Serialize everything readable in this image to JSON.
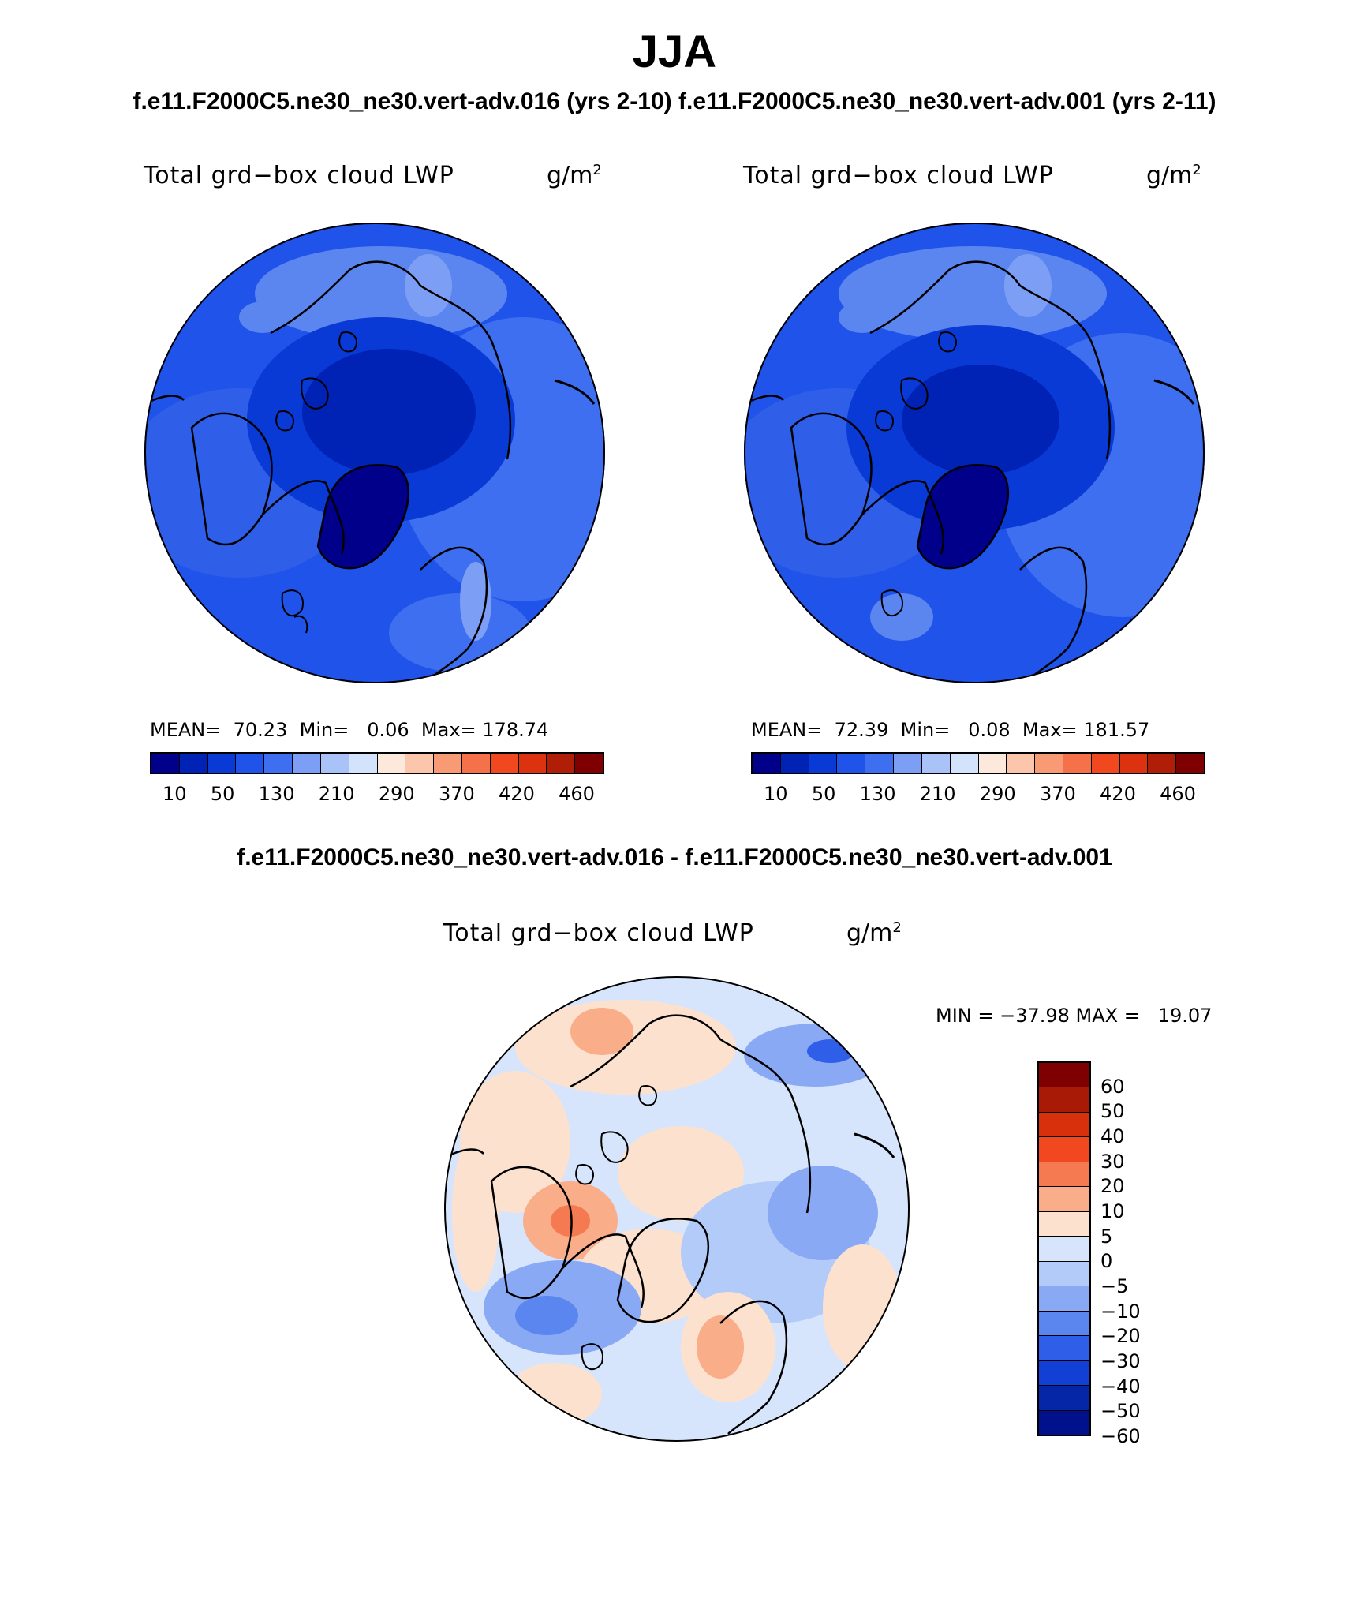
{
  "title": "JJA",
  "subtitle_top": "f.e11.F2000C5.ne30_ne30.vert-adv.016 (yrs 2-10)  f.e11.F2000C5.ne30_ne30.vert-adv.001 (yrs 2-11)",
  "subtitle_diff": "f.e11.F2000C5.ne30_ne30.vert-adv.016 - f.e11.F2000C5.ne30_ne30.vert-adv.001",
  "variable_label": "Total grd−box cloud LWP",
  "units_base": "g/m",
  "units_exp": "2",
  "panels": [
    {
      "mean_label": "MEAN=",
      "mean": "70.23",
      "min_label": "Min=",
      "min": "0.06",
      "max_label": "Max=",
      "max": "178.74"
    },
    {
      "mean_label": "MEAN=",
      "mean": "72.39",
      "min_label": "Min=",
      "min": "0.08",
      "max_label": "Max=",
      "max": "181.57"
    }
  ],
  "diff_panel": {
    "minmax": "MIN = −37.98 MAX =   19.07"
  },
  "colorbar_abs": {
    "colors": [
      "#00008b",
      "#0022b5",
      "#0a3ad6",
      "#1f53ea",
      "#3d6ff0",
      "#7c9ff5",
      "#a9c2f8",
      "#d3e3fb",
      "#fde9dc",
      "#fbc6ab",
      "#f89a73",
      "#f5714a",
      "#f2481f",
      "#dc320f",
      "#b01e08",
      "#7f0000"
    ],
    "labels": [
      "10",
      "50",
      "130",
      "210",
      "290",
      "370",
      "420",
      "460"
    ]
  },
  "colorbar_diff": {
    "colors": [
      "#7f0000",
      "#a81a06",
      "#d8300c",
      "#f2481f",
      "#f57a52",
      "#f9ad88",
      "#fde1cf",
      "#d6e5fb",
      "#b3cbf8",
      "#8aa9f4",
      "#5b86ef",
      "#2f5fe8",
      "#1240d4",
      "#0526a6",
      "#00118b"
    ],
    "labels": [
      "60",
      "50",
      "40",
      "30",
      "20",
      "10",
      "5",
      "0",
      "−5",
      "−10",
      "−20",
      "−30",
      "−40",
      "−50",
      "−60"
    ]
  }
}
